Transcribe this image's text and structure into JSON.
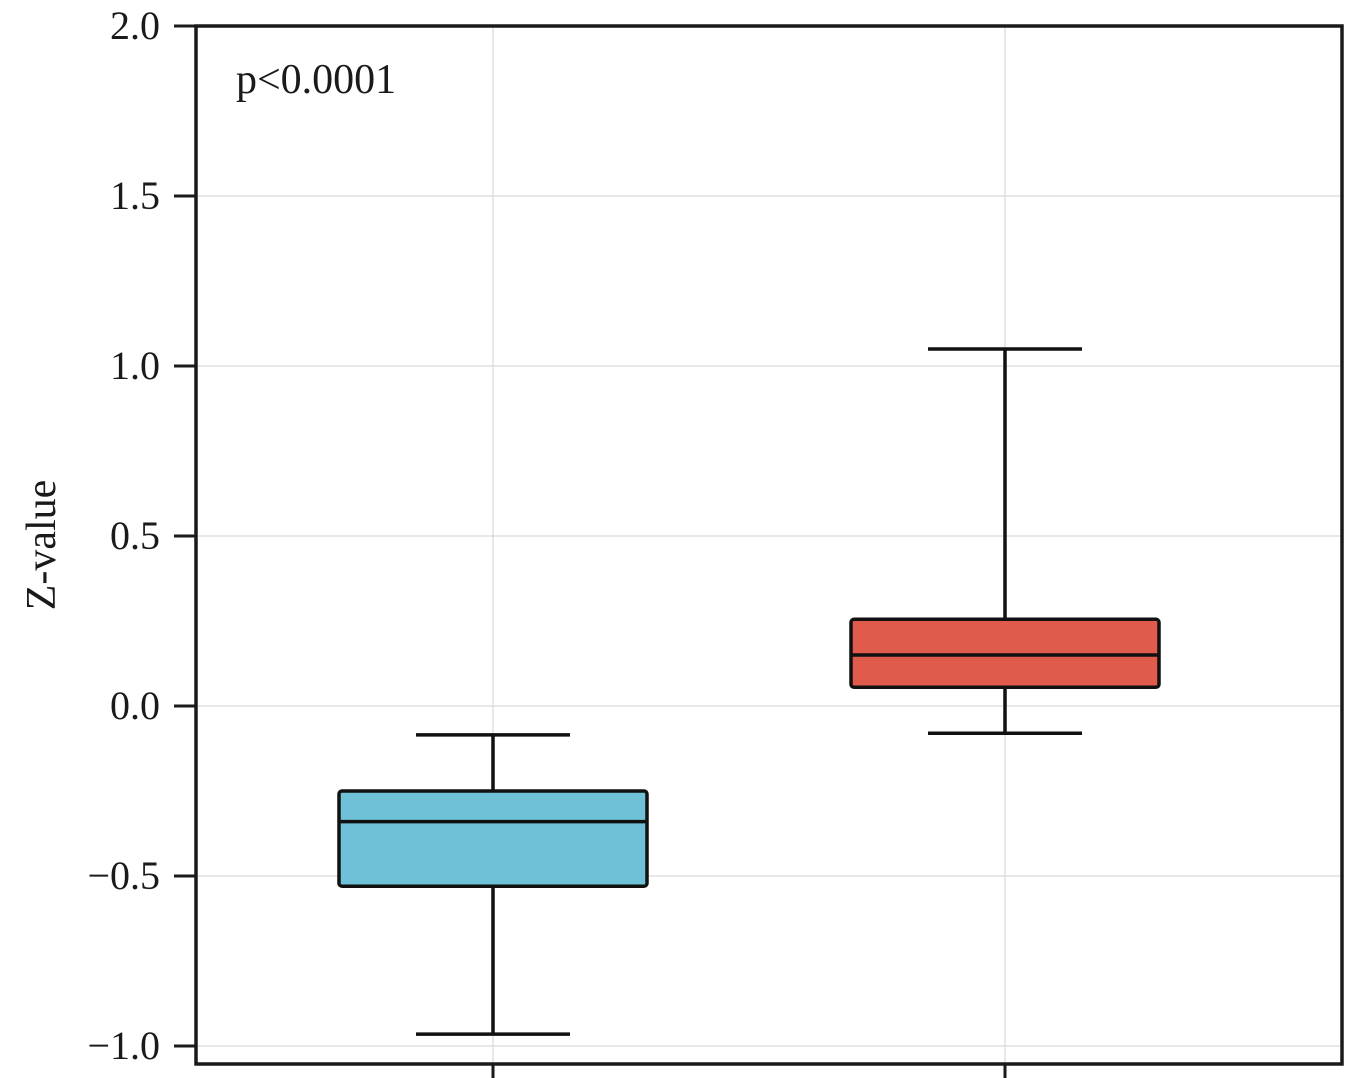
{
  "chart_data": {
    "type": "box",
    "title": "",
    "xlabel": "",
    "ylabel": "Z-value",
    "annotation": "p<0.0001",
    "ylim": [
      -1.0,
      2.0
    ],
    "yticks": [
      2.0,
      1.5,
      1.0,
      0.5,
      0.0,
      -0.5,
      -1.0
    ],
    "ytick_labels": [
      "2.0",
      "1.5",
      "1.0",
      "0.5",
      "0.0",
      "−0.5",
      "−1.0"
    ],
    "grid": true,
    "groups": [
      {
        "q1": -0.53,
        "median": -0.34,
        "q3": -0.25,
        "whisker_low": -0.965,
        "whisker_high": -0.085,
        "color": "#6fc1d8"
      },
      {
        "q1": 0.055,
        "median": 0.15,
        "q3": 0.255,
        "whisker_low": -0.08,
        "whisker_high": 1.05,
        "color": "#e05b4b"
      }
    ]
  }
}
